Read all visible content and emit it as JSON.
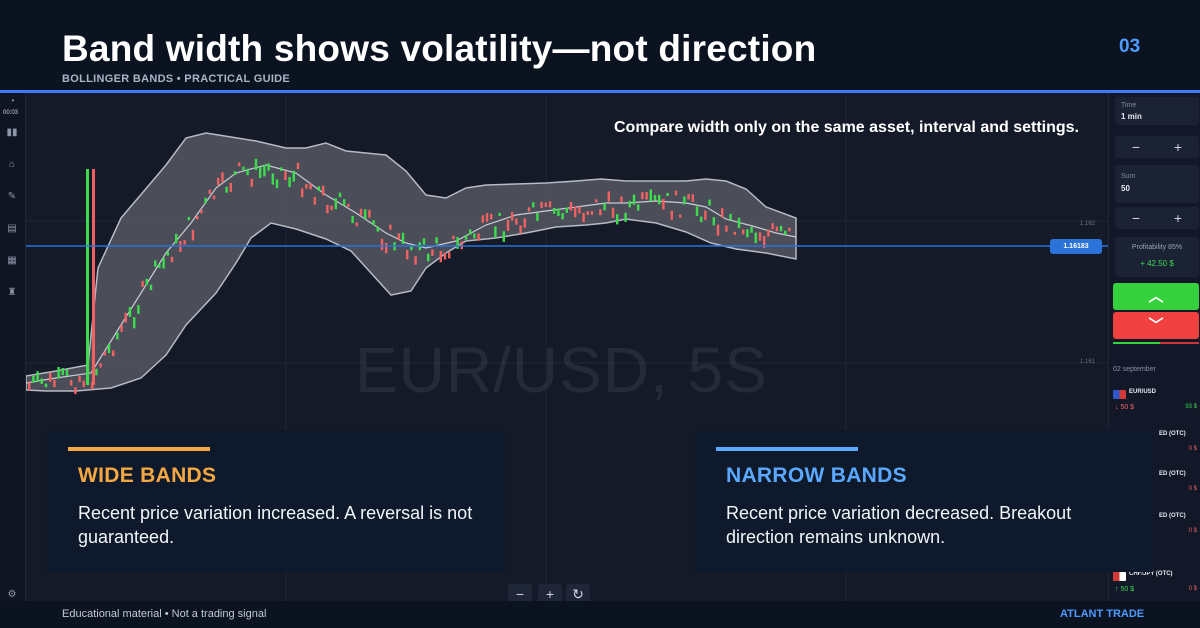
{
  "header": {
    "title": "Band width shows volatility—not direction",
    "subtitle": "BOLLINGER BANDS • PRACTICAL GUIDE",
    "slide_number": "03"
  },
  "chart": {
    "note": "Compare width only on the same asset, interval and settings.",
    "watermark": "EUR/USD, 5S",
    "current_price": "1.16183",
    "axis_labels": [
      "1.162",
      "1.161"
    ],
    "left_rail_time": "00:03",
    "colors": {
      "bullish": "#3ddc4f",
      "bearish": "#f06262",
      "price_line": "#2a73d9",
      "band_fill": "#5b5e66"
    }
  },
  "trade_panel": {
    "time_label": "Time",
    "time_value": "1 min",
    "sum_label": "Sum",
    "sum_value": "50",
    "minus": "−",
    "plus": "+",
    "profitability_label": "Profitability 85%",
    "profit_value": "+ 42.50 $",
    "up_icon": "chevron-up-icon",
    "down_icon": "chevron-down-icon",
    "date": "02 september",
    "assets": [
      {
        "name": "EUR/USD",
        "amount": "↓ 50 $",
        "payout": "93 $",
        "payout_color": "#3ddc4f"
      },
      {
        "name": "ED (OTC)",
        "amount": "",
        "payout": "0 $",
        "payout_color": "#f06262"
      },
      {
        "name": "ED (OTC)",
        "amount": "",
        "payout": "0 $",
        "payout_color": "#f06262"
      },
      {
        "name": "ED (OTC)",
        "amount": "",
        "payout": "0 $",
        "payout_color": "#f06262"
      },
      {
        "name": "CHF/JPY (OTC)",
        "amount": "↑ 50 $",
        "payout": "0 $",
        "payout_color": "#f06262"
      }
    ]
  },
  "zoom_controls": {
    "zoom_out": "−",
    "zoom_in": "+",
    "reset": "↻"
  },
  "cards": {
    "wide": {
      "title": "WIDE BANDS",
      "body": "Recent price variation increased. A reversal is not guaranteed.",
      "accent": "#f5a742"
    },
    "narrow": {
      "title": "NARROW BANDS",
      "body": "Recent price variation decreased. Breakout direction remains unknown.",
      "accent": "#5aa8ff"
    }
  },
  "footer": {
    "disclaimer": "Educational material • Not a trading signal",
    "brand": "ATLANT TRADE"
  }
}
